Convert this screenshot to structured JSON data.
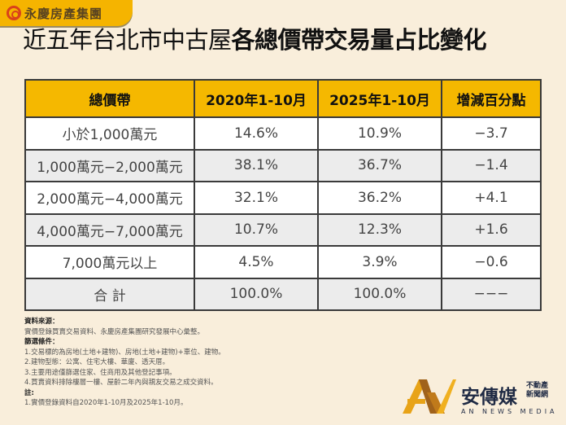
{
  "brand": {
    "name": "永慶房產集團"
  },
  "title": {
    "regular": "近五年台北市中古屋",
    "bold": "各總價帶交易量占比變化"
  },
  "table": {
    "headers": [
      "總價帶",
      "2020年1-10月",
      "2025年1-10月",
      "增減百分點"
    ],
    "rows": [
      [
        "小於1,000萬元",
        "14.6%",
        "10.9%",
        "−3.7"
      ],
      [
        "1,000萬元−2,000萬元",
        "38.1%",
        "36.7%",
        "−1.4"
      ],
      [
        "2,000萬元−4,000萬元",
        "32.1%",
        "36.2%",
        "+4.1"
      ],
      [
        "4,000萬元−7,000萬元",
        "10.7%",
        "12.3%",
        "+1.6"
      ],
      [
        "7,000萬元以上",
        "4.5%",
        "3.9%",
        "−0.6"
      ],
      [
        "合 計",
        "100.0%",
        "100.0%",
        "−−−"
      ]
    ]
  },
  "notes": {
    "source_label": "資料來源：",
    "source": "實價登錄買賣交易資料、永慶房產集團研究發展中心彙整。",
    "filter_label": "篩選條件：",
    "filters": [
      "1.交易標的為房地(土地+建物)、房地(土地+建物)+車位、建物。",
      "2.建物型態：公寓、住宅大樓、華廈、透天厝。",
      "3.主要用途僅篩選住家、住商用及其他登記事項。",
      "4.買賣資料排除樓層一樓、屋齡二年內與親友交易之成交資料。"
    ],
    "note_label": "註:",
    "note": "1.實價登錄資料自2020年1-10月及2025年1-10月。"
  },
  "media": {
    "cn": "安傳媒",
    "sub1": "不動產",
    "sub2": "新聞網",
    "en": "AN NEWS MEDIA"
  },
  "colors": {
    "header": "#f5b800",
    "background": "#f9eedb",
    "alt_row": "#ececec"
  }
}
